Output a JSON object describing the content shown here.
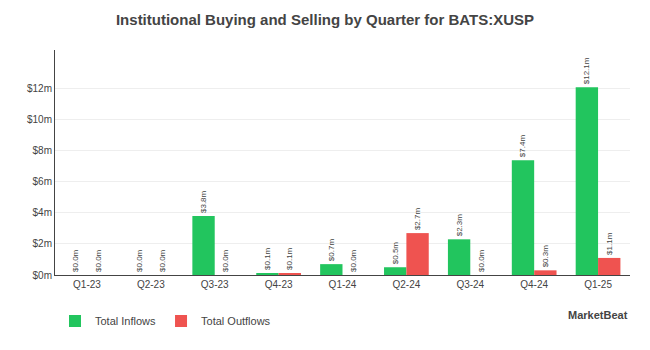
{
  "chart_data": {
    "type": "bar",
    "title": "Institutional Buying and Selling by Quarter for BATS:XUSP",
    "categories": [
      "Q1-23",
      "Q2-23",
      "Q3-23",
      "Q4-23",
      "Q1-24",
      "Q2-24",
      "Q3-24",
      "Q4-24",
      "Q1-25"
    ],
    "series": [
      {
        "name": "Total Inflows",
        "color": "#22c55e",
        "values": [
          0.0,
          0.0,
          3.8,
          0.1,
          0.7,
          0.5,
          2.3,
          7.4,
          12.1
        ],
        "value_labels": [
          "$0.0m",
          "$0.0m",
          "$3.8m",
          "$0.1m",
          "$0.7m",
          "$0.5m",
          "$2.3m",
          "$7.4m",
          "$12.1m"
        ]
      },
      {
        "name": "Total Outflows",
        "color": "#ef5350",
        "values": [
          0.0,
          0.0,
          0.0,
          0.1,
          0.0,
          2.7,
          0.0,
          0.3,
          1.1
        ],
        "value_labels": [
          "$0.0m",
          "$0.0m",
          "$0.0m",
          "$0.1m",
          "$0.0m",
          "$2.7m",
          "$0.0m",
          "$0.3m",
          "$1.1m"
        ]
      }
    ],
    "ylim": [
      0,
      14.5
    ],
    "yticks": [
      {
        "value": 0,
        "label": "$0m"
      },
      {
        "value": 2,
        "label": "$2m"
      },
      {
        "value": 4,
        "label": "$4m"
      },
      {
        "value": 6,
        "label": "$6m"
      },
      {
        "value": 8,
        "label": "$8m"
      },
      {
        "value": 10,
        "label": "$10m"
      },
      {
        "value": 12,
        "label": "$12m"
      }
    ],
    "grid": true,
    "data_labels": true,
    "legend": "lower left",
    "annotations": [
      "MarketBeat"
    ]
  }
}
